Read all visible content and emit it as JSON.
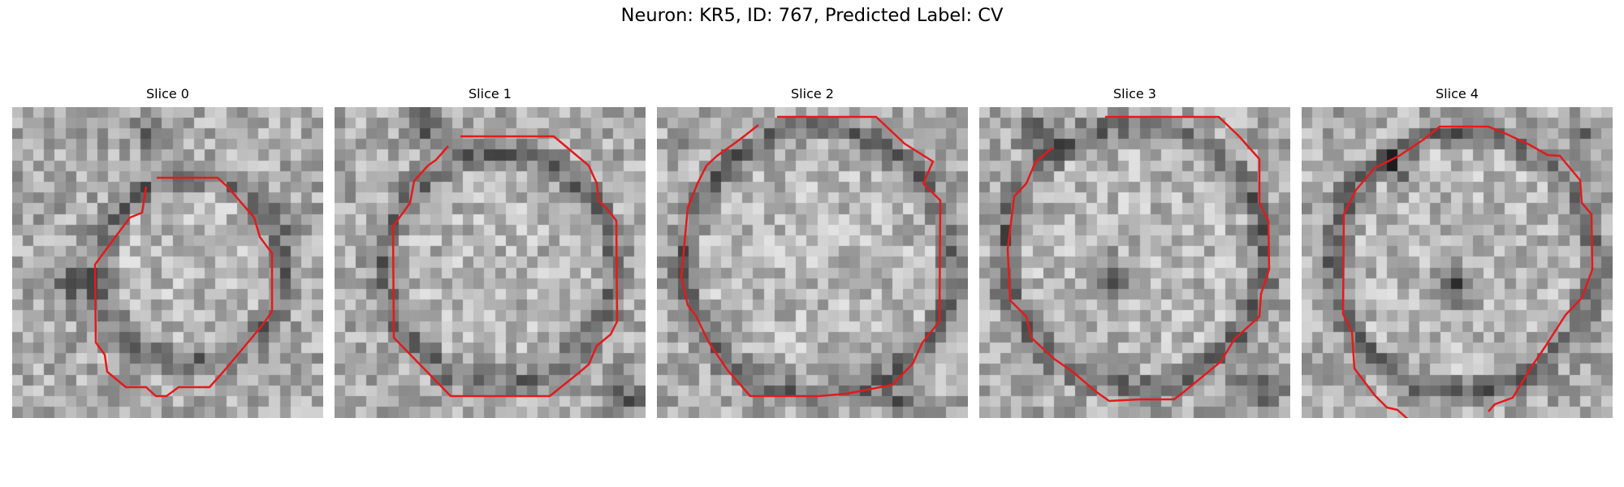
{
  "figure": {
    "title": "Neuron: KR5, ID: 767, Predicted Label: CV",
    "contour_color": "#e41a1c"
  },
  "slices": [
    {
      "title": "Slice 0"
    },
    {
      "title": "Slice 1"
    },
    {
      "title": "Slice 2"
    },
    {
      "title": "Slice 3"
    },
    {
      "title": "Slice 4"
    }
  ]
}
